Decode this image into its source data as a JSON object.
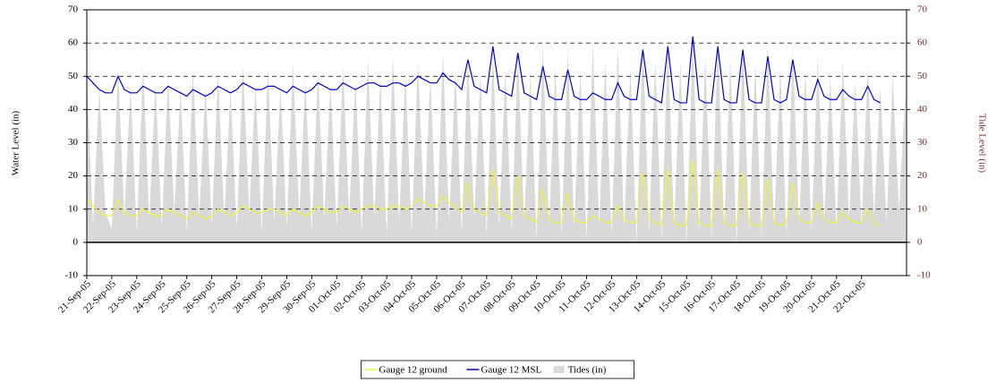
{
  "chart_data": {
    "type": "line",
    "xlabel": null,
    "ylabel": "Water Level (in)",
    "y2label": "Tide Level (in)",
    "xlim": [
      0,
      32.8
    ],
    "xticks": [
      {
        "value": 0,
        "label": "21-Sep-05"
      },
      {
        "value": 1,
        "label": "22-Sep-05"
      },
      {
        "value": 2,
        "label": "23-Sep-05"
      },
      {
        "value": 3,
        "label": "24-Sep-05"
      },
      {
        "value": 4,
        "label": "25-Sep-05"
      },
      {
        "value": 5,
        "label": "26-Sep-05"
      },
      {
        "value": 6,
        "label": "27-Sep-05"
      },
      {
        "value": 7,
        "label": "28-Sep-05"
      },
      {
        "value": 8,
        "label": "29-Sep-05"
      },
      {
        "value": 9,
        "label": "30-Sep-05"
      },
      {
        "value": 10,
        "label": "01-Oct-05"
      },
      {
        "value": 11,
        "label": "02-Oct-05"
      },
      {
        "value": 12,
        "label": "03-Oct-05"
      },
      {
        "value": 13,
        "label": "04-Oct-05"
      },
      {
        "value": 14,
        "label": "05-Oct-05"
      },
      {
        "value": 15,
        "label": "06-Oct-05"
      },
      {
        "value": 16,
        "label": "07-Oct-05"
      },
      {
        "value": 17,
        "label": "08-Oct-05"
      },
      {
        "value": 18,
        "label": "09-Oct-05"
      },
      {
        "value": 19,
        "label": "10-Oct-05"
      },
      {
        "value": 20,
        "label": "11-Oct-05"
      },
      {
        "value": 21,
        "label": "12-Oct-05"
      },
      {
        "value": 22,
        "label": "13-Oct-05"
      },
      {
        "value": 23,
        "label": "14-Oct-05"
      },
      {
        "value": 24,
        "label": "15-Oct-05"
      },
      {
        "value": 25,
        "label": "16-Oct-05"
      },
      {
        "value": 26,
        "label": "17-Oct-05"
      },
      {
        "value": 27,
        "label": "18-Oct-05"
      },
      {
        "value": 28,
        "label": "19-Oct-05"
      },
      {
        "value": 29,
        "label": "20-Oct-05"
      },
      {
        "value": 30,
        "label": "21-Oct-05"
      },
      {
        "value": 31,
        "label": "22-Oct-05"
      }
    ],
    "ylim": [
      -10,
      70
    ],
    "yticks": [
      -10,
      0,
      10,
      20,
      30,
      40,
      50,
      60,
      70
    ],
    "y2lim": [
      -10,
      70
    ],
    "y2ticks": [
      -10,
      0,
      10,
      20,
      30,
      40,
      50,
      60,
      70
    ],
    "grid": true,
    "legend": "bottom",
    "x": [
      0,
      0.25,
      0.5,
      0.75,
      1,
      1.25,
      1.5,
      1.75,
      2,
      2.25,
      2.5,
      2.75,
      3,
      3.25,
      3.5,
      3.75,
      4,
      4.25,
      4.5,
      4.75,
      5,
      5.25,
      5.5,
      5.75,
      6,
      6.25,
      6.5,
      6.75,
      7,
      7.25,
      7.5,
      7.75,
      8,
      8.25,
      8.5,
      8.75,
      9,
      9.25,
      9.5,
      9.75,
      10,
      10.25,
      10.5,
      10.75,
      11,
      11.25,
      11.5,
      11.75,
      12,
      12.25,
      12.5,
      12.75,
      13,
      13.25,
      13.5,
      13.75,
      14,
      14.25,
      14.5,
      14.75,
      15,
      15.25,
      15.5,
      15.75,
      16,
      16.25,
      16.5,
      16.75,
      17,
      17.25,
      17.5,
      17.75,
      18,
      18.25,
      18.5,
      18.75,
      19,
      19.25,
      19.5,
      19.75,
      20,
      20.25,
      20.5,
      20.75,
      21,
      21.25,
      21.5,
      21.75,
      22,
      22.25,
      22.5,
      22.75,
      23,
      23.25,
      23.5,
      23.75,
      24,
      24.25,
      24.5,
      24.75,
      25,
      25.25,
      25.5,
      25.75,
      26,
      26.25,
      26.5,
      26.75,
      27,
      27.25,
      27.5,
      27.75,
      28,
      28.25,
      28.5,
      28.75,
      29,
      29.25,
      29.5,
      29.75,
      30,
      30.25,
      30.5,
      30.75,
      31,
      31.25,
      31.5,
      31.75,
      32,
      32.25,
      32.5,
      32.75
    ],
    "series": [
      {
        "name": "Tides (in)",
        "kind": "area",
        "axis": "y2",
        "color": "#d9d9d9",
        "values": [
          50,
          5,
          47,
          9,
          4,
          52,
          8,
          47,
          3,
          53,
          7,
          48,
          4,
          50,
          9,
          46,
          3,
          52,
          8,
          47,
          5,
          51,
          7,
          46,
          4,
          53,
          9,
          48,
          3,
          52,
          6,
          47,
          4,
          54,
          8,
          49,
          3,
          52,
          7,
          48,
          4,
          53,
          8,
          49,
          3,
          55,
          7,
          50,
          2,
          56,
          6,
          51,
          3,
          55,
          8,
          50,
          2,
          57,
          6,
          52,
          3,
          56,
          7,
          51,
          2,
          58,
          5,
          52,
          3,
          57,
          6,
          51,
          1,
          59,
          5,
          53,
          2,
          58,
          4,
          52,
          1,
          60,
          5,
          54,
          2,
          59,
          4,
          53,
          0,
          61,
          3,
          55,
          1,
          60,
          4,
          54,
          0,
          62,
          3,
          56,
          1,
          61,
          4,
          55,
          0,
          60,
          3,
          54,
          1,
          59,
          4,
          53,
          2,
          58,
          5,
          52,
          3,
          56,
          6,
          50,
          4,
          55,
          7,
          49,
          5,
          53,
          8,
          47,
          6,
          50,
          10,
          45
        ]
      },
      {
        "name": "Gauge 12 ground",
        "kind": "line",
        "color": "#f2f23a",
        "values": [
          13,
          11,
          9,
          8,
          8,
          13,
          9,
          8,
          8,
          10,
          9,
          8,
          8,
          10,
          9,
          8,
          7,
          9,
          8,
          7,
          8,
          10,
          9,
          8,
          9,
          11,
          10,
          9,
          9,
          10,
          10,
          9,
          8,
          10,
          9,
          8,
          9,
          11,
          10,
          9,
          9,
          11,
          10,
          9,
          10,
          11,
          11,
          10,
          10,
          11,
          11,
          10,
          11,
          13,
          12,
          11,
          11,
          14,
          12,
          11,
          9,
          18,
          10,
          9,
          8,
          22,
          9,
          8,
          7,
          20,
          8,
          7,
          6,
          16,
          7,
          6,
          6,
          15,
          7,
          6,
          6,
          8,
          7,
          6,
          6,
          11,
          7,
          6,
          6,
          21,
          7,
          6,
          5,
          22,
          6,
          5,
          5,
          25,
          6,
          5,
          5,
          22,
          6,
          5,
          5,
          21,
          6,
          5,
          5,
          19,
          6,
          5,
          6,
          18,
          7,
          6,
          6,
          12,
          7,
          6,
          6,
          9,
          7,
          6,
          6,
          10,
          6,
          5,
          null,
          null,
          null,
          null
        ]
      },
      {
        "name": "Gauge 12 MSL",
        "kind": "line",
        "color": "#0000cc",
        "values": [
          50,
          48,
          46,
          45,
          45,
          50,
          46,
          45,
          45,
          47,
          46,
          45,
          45,
          47,
          46,
          45,
          44,
          46,
          45,
          44,
          45,
          47,
          46,
          45,
          46,
          48,
          47,
          46,
          46,
          47,
          47,
          46,
          45,
          47,
          46,
          45,
          46,
          48,
          47,
          46,
          46,
          48,
          47,
          46,
          47,
          48,
          48,
          47,
          47,
          48,
          48,
          47,
          48,
          50,
          49,
          48,
          48,
          51,
          49,
          48,
          46,
          55,
          47,
          46,
          45,
          59,
          46,
          45,
          44,
          57,
          45,
          44,
          43,
          53,
          44,
          43,
          43,
          52,
          44,
          43,
          43,
          45,
          44,
          43,
          43,
          48,
          44,
          43,
          43,
          58,
          44,
          43,
          42,
          59,
          43,
          42,
          42,
          62,
          43,
          42,
          42,
          59,
          43,
          42,
          42,
          58,
          43,
          42,
          42,
          56,
          43,
          42,
          43,
          55,
          44,
          43,
          43,
          49,
          44,
          43,
          43,
          46,
          44,
          43,
          43,
          47,
          43,
          42,
          null,
          null,
          null,
          null
        ]
      }
    ],
    "legend_order": [
      1,
      2,
      0
    ]
  }
}
